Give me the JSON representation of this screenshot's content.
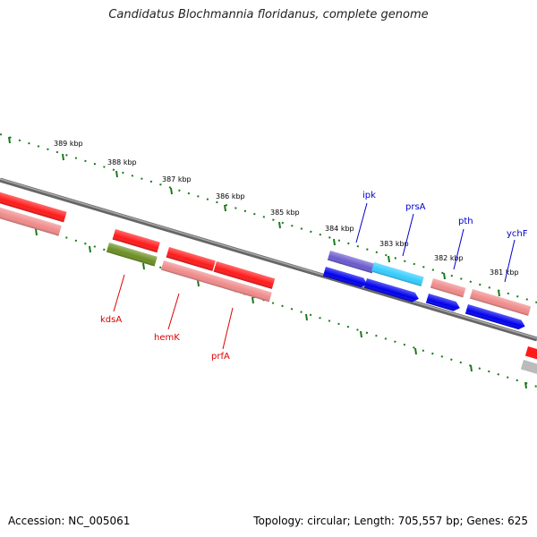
{
  "title": "Candidatus Blochmannia floridanus, complete genome",
  "footer": {
    "accession": "Accession: NC_005061",
    "stats": "Topology: circular; Length: 705,557 bp; Genes: 625"
  },
  "ruler": {
    "labels": [
      "389 kbp",
      "388 kbp",
      "387 kbp",
      "386 kbp",
      "385 kbp",
      "384 kbp",
      "383 kbp",
      "382 kbp",
      "381 kbp"
    ]
  },
  "genes": {
    "kdsA": "kdsA",
    "hemK": "hemK",
    "prfA": "prfA",
    "ipk": "ipk",
    "prsA": "prsA",
    "pth": "pth",
    "ychF": "ychF"
  },
  "colors": {
    "backbone": "#7a7a7a",
    "tick": "#1a7a1a",
    "red": "#ff1a1a",
    "pink": "#f08a8a",
    "olive": "#6b8e23",
    "blue": "#0000ee",
    "purple": "#6a5acd",
    "cyan": "#33ccff",
    "grey": "#bbbbbb",
    "label_red": "#dd0000",
    "label_blue": "#0000cc"
  }
}
